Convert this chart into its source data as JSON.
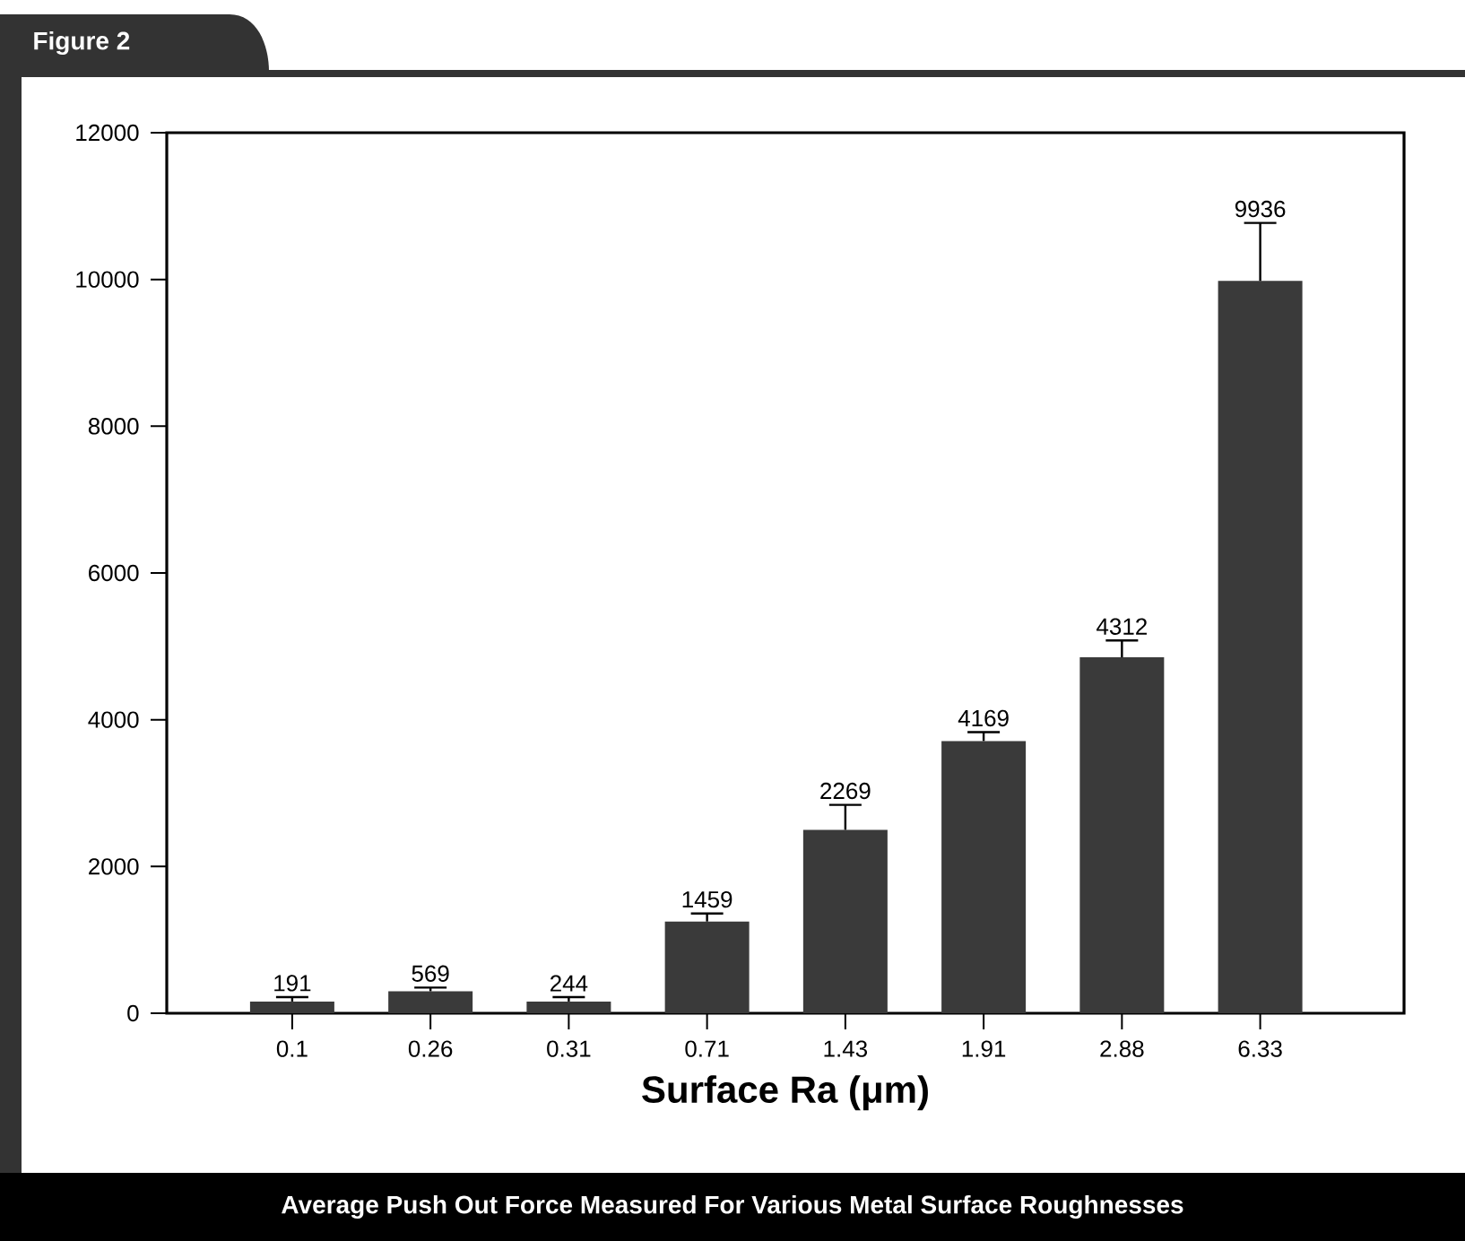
{
  "chart_data": {
    "type": "bar",
    "title": "Figure 2",
    "xlabel": "Surface Ra (μm)",
    "categories": [
      "0.1",
      "0.26",
      "0.31",
      "0.71",
      "1.43",
      "1.91",
      "2.88",
      "6.33"
    ],
    "values": [
      160,
      300,
      160,
      1250,
      2500,
      3710,
      4850,
      9980
    ],
    "errors": [
      [
        160,
        220
      ],
      [
        300,
        350
      ],
      [
        160,
        220
      ],
      [
        1250,
        1360
      ],
      [
        2500,
        2840
      ],
      [
        3710,
        3830
      ],
      [
        4850,
        5080
      ],
      [
        9980,
        10770
      ]
    ],
    "color": "#3a3a3a",
    "ylim": [
      0,
      12000
    ],
    "yticks": [
      0,
      2000,
      4000,
      6000,
      8000,
      10000,
      12000
    ],
    "annotations": [
      "Average Push Out Force Measured For Various Metal Surface Roughnesses",
      {
        "text": "191",
        "x": "0.1",
        "y": 160
      },
      {
        "text": "569",
        "x": "0.26",
        "y": 300
      },
      {
        "text": "244",
        "x": "0.31",
        "y": 160
      },
      {
        "text": "1459",
        "x": "0.71",
        "y": 1250
      },
      {
        "text": "2269",
        "x": "1.43",
        "y": 2500
      },
      {
        "text": "4169",
        "x": "1.91",
        "y": 3710
      },
      {
        "text": "4312",
        "x": "2.88",
        "y": 4850
      },
      {
        "text": "9936",
        "x": "6.33",
        "y": 9980
      }
    ]
  }
}
